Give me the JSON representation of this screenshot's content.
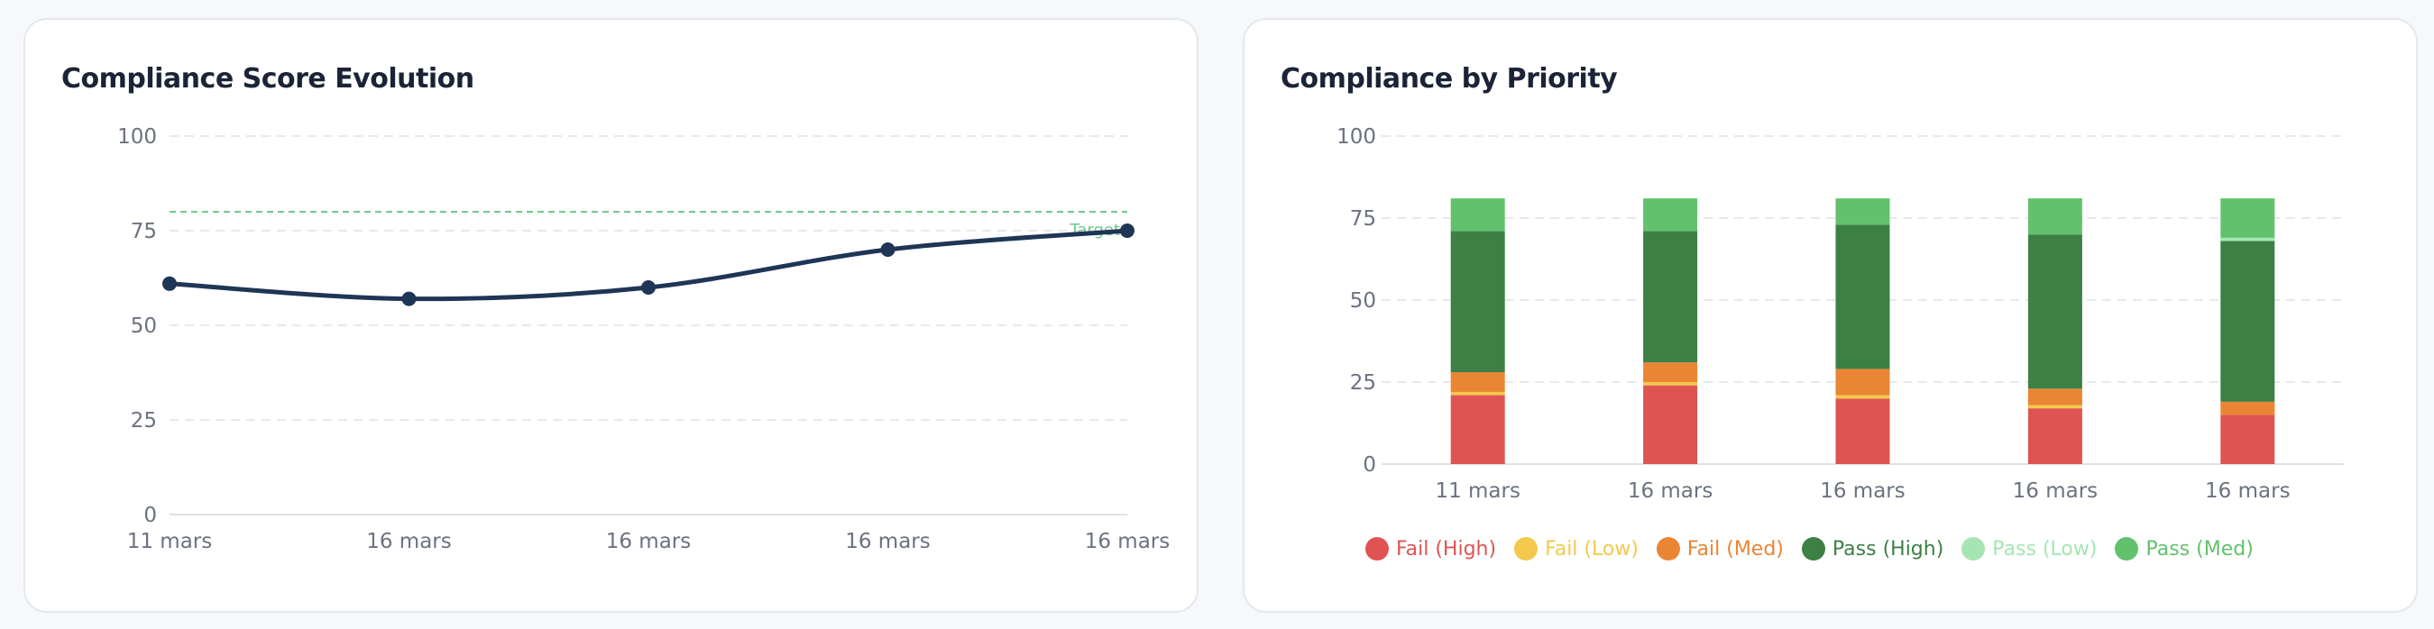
{
  "charts": {
    "score": {
      "title": "Compliance Score Evolution"
    },
    "priority": {
      "title": "Compliance by Priority"
    }
  },
  "chart_data": [
    {
      "type": "line",
      "title": "Compliance Score Evolution",
      "categories": [
        "11 mars",
        "16 mars",
        "16 mars",
        "16 mars",
        "16 mars"
      ],
      "series": [
        {
          "values": [
            61,
            57,
            60,
            70,
            75
          ],
          "color": "#1f3556"
        }
      ],
      "target": {
        "value": 80,
        "label": "Target",
        "color": "#73c88a"
      },
      "ylim": [
        0,
        100
      ],
      "yticks": [
        0,
        25,
        50,
        75,
        100
      ],
      "grid": true
    },
    {
      "type": "bar",
      "stacked": true,
      "title": "Compliance by Priority",
      "categories": [
        "11 mars",
        "16 mars",
        "16 mars",
        "16 mars",
        "16 mars"
      ],
      "series": [
        {
          "name": "Fail (High)",
          "color": "#df5452",
          "values": [
            21,
            24,
            20,
            17,
            15
          ]
        },
        {
          "name": "Fail (Low)",
          "color": "#f2c94c",
          "values": [
            1,
            1,
            1,
            1,
            0
          ]
        },
        {
          "name": "Fail (Med)",
          "color": "#ea8534",
          "values": [
            6,
            6,
            8,
            5,
            4
          ]
        },
        {
          "name": "Pass (High)",
          "color": "#3d8046",
          "values": [
            43,
            40,
            44,
            47,
            49
          ]
        },
        {
          "name": "Pass (Low)",
          "color": "#a4e5b3",
          "values": [
            0,
            0,
            0,
            0,
            1
          ]
        },
        {
          "name": "Pass (Med)",
          "color": "#62c16d",
          "values": [
            10,
            10,
            8,
            11,
            12
          ]
        }
      ],
      "ylim": [
        0,
        100
      ],
      "yticks": [
        0,
        25,
        50,
        75,
        100
      ],
      "grid": true,
      "legend": "bottom"
    }
  ]
}
